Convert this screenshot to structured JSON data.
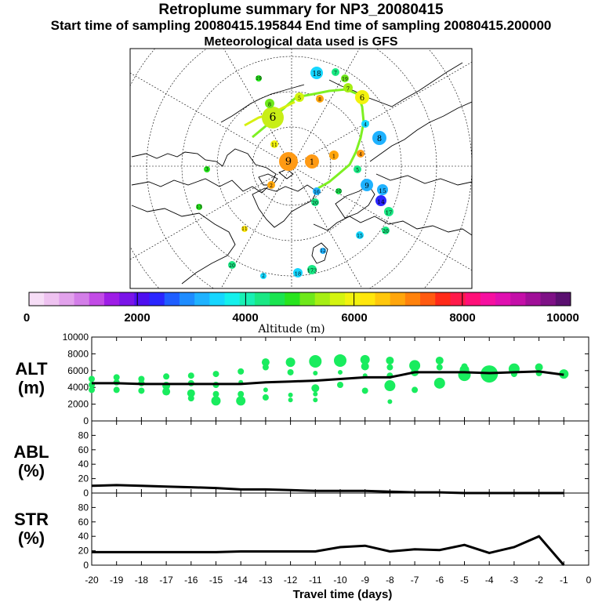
{
  "header": {
    "title": "Retroplume summary for NP3_20080415",
    "subtitle": "Start time of sampling 20080415.195844     End time of sampling 20080415.200000",
    "met": "Meteorological data used is GFS"
  },
  "colorbar": {
    "ticks": [
      "0",
      "2000",
      "4000",
      "6000",
      "8000",
      "10000"
    ],
    "label": "Altitude (m)",
    "colors": [
      "#f6ddf6",
      "#eec2f0",
      "#e2a2ec",
      "#d37ee8",
      "#c24be6",
      "#9e1de6",
      "#7a14e8",
      "#4e0ff0",
      "#2a26ff",
      "#1f5eff",
      "#1e8cff",
      "#1fb2ff",
      "#16d6ff",
      "#14f0ec",
      "#18f0b4",
      "#1ae884",
      "#1ae450",
      "#28e41e",
      "#6ee81a",
      "#a6ee14",
      "#d4f410",
      "#f2f20e",
      "#ffe60c",
      "#ffc70c",
      "#ffa60c",
      "#ff820c",
      "#ff5a10",
      "#ff2a18",
      "#ff1a4a",
      "#ff1078",
      "#f610a0",
      "#e010b0",
      "#c40fa8",
      "#a00f98",
      "#7e1186",
      "#5a1070"
    ]
  },
  "map": {
    "labels": [
      "18",
      "19",
      "7",
      "8",
      "6",
      "5",
      "4",
      "3",
      "2",
      "1",
      "9",
      "10",
      "11",
      "12",
      "13",
      "14",
      "15",
      "16",
      "17",
      "20",
      "173"
    ]
  },
  "axes": {
    "x_ticks": [
      "-20",
      "-19",
      "-18",
      "-17",
      "-16",
      "-15",
      "-14",
      "-13",
      "-12",
      "-11",
      "-10",
      "-9",
      "-8",
      "-7",
      "-6",
      "-5",
      "-4",
      "-3",
      "-2",
      "-1",
      "0"
    ],
    "x_label": "Travel time (days)"
  },
  "chart_data": [
    {
      "type": "scatter",
      "id": "altitude",
      "ylabel": "ALT",
      "yunit": "(m)",
      "xlim": [
        -20,
        0
      ],
      "ylim": [
        0,
        10000
      ],
      "yticks": [
        "0",
        "2000",
        "4000",
        "6000",
        "8000",
        "10000"
      ],
      "point_color": "#19ec5e",
      "line": {
        "x": [
          -20,
          -19,
          -18,
          -17,
          -16,
          -15,
          -14,
          -13,
          -12,
          -11,
          -10,
          -9,
          -8,
          -7,
          -6,
          -5,
          -4,
          -3,
          -2,
          -1
        ],
        "y": [
          4500,
          4500,
          4400,
          4400,
          4400,
          4400,
          4400,
          4600,
          4700,
          4800,
          5000,
          5200,
          5200,
          5800,
          5800,
          5800,
          5700,
          5800,
          5900,
          5500
        ]
      },
      "points": [
        {
          "x": -20,
          "y": 5000,
          "s": 4
        },
        {
          "x": -20,
          "y": 4300,
          "s": 4
        },
        {
          "x": -20,
          "y": 3700,
          "s": 4
        },
        {
          "x": -19,
          "y": 5200,
          "s": 4
        },
        {
          "x": -19,
          "y": 4600,
          "s": 4
        },
        {
          "x": -19,
          "y": 3700,
          "s": 4
        },
        {
          "x": -18,
          "y": 5000,
          "s": 4
        },
        {
          "x": -18,
          "y": 4500,
          "s": 4
        },
        {
          "x": -18,
          "y": 3600,
          "s": 4
        },
        {
          "x": -17,
          "y": 5300,
          "s": 4
        },
        {
          "x": -17,
          "y": 4200,
          "s": 5
        },
        {
          "x": -17,
          "y": 3500,
          "s": 5
        },
        {
          "x": -16,
          "y": 5400,
          "s": 4
        },
        {
          "x": -16,
          "y": 4500,
          "s": 4
        },
        {
          "x": -16,
          "y": 3300,
          "s": 5
        },
        {
          "x": -16,
          "y": 2700,
          "s": 4
        },
        {
          "x": -15,
          "y": 5600,
          "s": 4
        },
        {
          "x": -15,
          "y": 4300,
          "s": 4
        },
        {
          "x": -15,
          "y": 3200,
          "s": 4
        },
        {
          "x": -15,
          "y": 2400,
          "s": 6
        },
        {
          "x": -14,
          "y": 5900,
          "s": 4
        },
        {
          "x": -14,
          "y": 4600,
          "s": 3
        },
        {
          "x": -14,
          "y": 3200,
          "s": 4
        },
        {
          "x": -14,
          "y": 2400,
          "s": 6
        },
        {
          "x": -13,
          "y": 7000,
          "s": 5
        },
        {
          "x": -13,
          "y": 6400,
          "s": 4
        },
        {
          "x": -13,
          "y": 3700,
          "s": 3
        },
        {
          "x": -13,
          "y": 2800,
          "s": 4
        },
        {
          "x": -12,
          "y": 7000,
          "s": 6
        },
        {
          "x": -12,
          "y": 5800,
          "s": 4
        },
        {
          "x": -12,
          "y": 3100,
          "s": 3
        },
        {
          "x": -12,
          "y": 2500,
          "s": 3
        },
        {
          "x": -11,
          "y": 7100,
          "s": 8
        },
        {
          "x": -11,
          "y": 5700,
          "s": 3
        },
        {
          "x": -11,
          "y": 3900,
          "s": 5
        },
        {
          "x": -11,
          "y": 3200,
          "s": 3
        },
        {
          "x": -11,
          "y": 2500,
          "s": 3
        },
        {
          "x": -10,
          "y": 7200,
          "s": 8
        },
        {
          "x": -10,
          "y": 5800,
          "s": 3
        },
        {
          "x": -10,
          "y": 4300,
          "s": 4
        },
        {
          "x": -9,
          "y": 7300,
          "s": 6
        },
        {
          "x": -9,
          "y": 6500,
          "s": 5
        },
        {
          "x": -9,
          "y": 5400,
          "s": 3
        },
        {
          "x": -9,
          "y": 3600,
          "s": 4
        },
        {
          "x": -8,
          "y": 7200,
          "s": 5
        },
        {
          "x": -8,
          "y": 6400,
          "s": 4
        },
        {
          "x": -8,
          "y": 5400,
          "s": 4
        },
        {
          "x": -8,
          "y": 4200,
          "s": 7
        },
        {
          "x": -8,
          "y": 2300,
          "s": 3
        },
        {
          "x": -7,
          "y": 6600,
          "s": 7
        },
        {
          "x": -7,
          "y": 5800,
          "s": 5
        },
        {
          "x": -7,
          "y": 3700,
          "s": 4
        },
        {
          "x": -6,
          "y": 7200,
          "s": 5
        },
        {
          "x": -6,
          "y": 6400,
          "s": 4
        },
        {
          "x": -6,
          "y": 4500,
          "s": 7
        },
        {
          "x": -5,
          "y": 6500,
          "s": 4
        },
        {
          "x": -5,
          "y": 6100,
          "s": 6
        },
        {
          "x": -5,
          "y": 5500,
          "s": 8
        },
        {
          "x": -4,
          "y": 5600,
          "s": 11
        },
        {
          "x": -3,
          "y": 6200,
          "s": 7
        },
        {
          "x": -3,
          "y": 5600,
          "s": 4
        },
        {
          "x": -2,
          "y": 6400,
          "s": 5
        },
        {
          "x": -2,
          "y": 5700,
          "s": 4
        },
        {
          "x": -1,
          "y": 5600,
          "s": 6
        }
      ]
    },
    {
      "type": "line",
      "id": "abl",
      "ylabel": "ABL",
      "yunit": "(%)",
      "xlim": [
        -20,
        0
      ],
      "ylim": [
        0,
        100
      ],
      "yticks": [
        "0",
        "20",
        "40",
        "60",
        "80"
      ],
      "x": [
        -20,
        -19,
        -18,
        -17,
        -16,
        -15,
        -14,
        -13,
        -12,
        -11,
        -10,
        -9,
        -8,
        -7,
        -6,
        -5,
        -4,
        -3,
        -2,
        -1
      ],
      "y": [
        10,
        11,
        10,
        9,
        8,
        7,
        5,
        5,
        4,
        3,
        3,
        3,
        2,
        1,
        1,
        0,
        0,
        0,
        0,
        0
      ]
    },
    {
      "type": "line",
      "id": "str",
      "ylabel": "STR",
      "yunit": "(%)",
      "xlim": [
        -20,
        0
      ],
      "ylim": [
        0,
        100
      ],
      "yticks": [
        "0",
        "20",
        "40",
        "60",
        "80"
      ],
      "x": [
        -20,
        -19,
        -18,
        -17,
        -16,
        -15,
        -14,
        -13,
        -12,
        -11,
        -10,
        -9,
        -8,
        -7,
        -6,
        -5,
        -4,
        -3,
        -2,
        -1
      ],
      "y": [
        18,
        18,
        18,
        18,
        18,
        18,
        19,
        19,
        19,
        19,
        25,
        27,
        19,
        22,
        21,
        28,
        17,
        25,
        40,
        0
      ]
    }
  ]
}
